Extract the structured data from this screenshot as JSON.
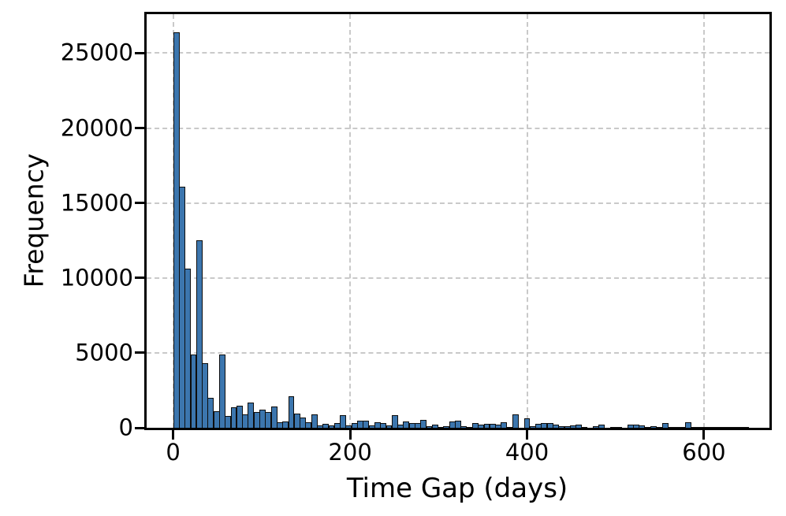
{
  "chart_data": {
    "type": "bar",
    "subtype": "histogram",
    "title": "",
    "xlabel": "Time Gap (days)",
    "ylabel": "Frequency",
    "bin_start": 0,
    "bin_width_days": 6.5,
    "values": [
      26400,
      16100,
      10600,
      4900,
      12500,
      4300,
      2000,
      1100,
      4900,
      800,
      1350,
      1450,
      900,
      1700,
      1050,
      1200,
      1050,
      1400,
      350,
      420,
      2100,
      970,
      700,
      350,
      920,
      180,
      250,
      180,
      300,
      830,
      180,
      300,
      480,
      460,
      150,
      350,
      320,
      150,
      850,
      200,
      400,
      320,
      320,
      530,
      100,
      200,
      50,
      80,
      440,
      500,
      100,
      60,
      320,
      200,
      280,
      280,
      230,
      350,
      60,
      900,
      0,
      650,
      120,
      270,
      300,
      300,
      200,
      120,
      120,
      140,
      230,
      20,
      0,
      120,
      230,
      0,
      50,
      70,
      0,
      220,
      220,
      180,
      60,
      90,
      50,
      300,
      60,
      40,
      40,
      350,
      40,
      30,
      30,
      40,
      30,
      30,
      40,
      30,
      20,
      20
    ],
    "x_ticks": [
      0,
      200,
      400,
      600
    ],
    "y_ticks": [
      0,
      5000,
      10000,
      15000,
      20000,
      25000
    ],
    "xlim": [
      -30,
      674
    ],
    "ylim": [
      0,
      27600
    ],
    "grid": "dashed",
    "legend": "none",
    "bar_color": "#3C76AE",
    "bar_edge_color": "#0d0d0d",
    "grid_color": "#c9c9c9",
    "axis_color": "#000000"
  }
}
